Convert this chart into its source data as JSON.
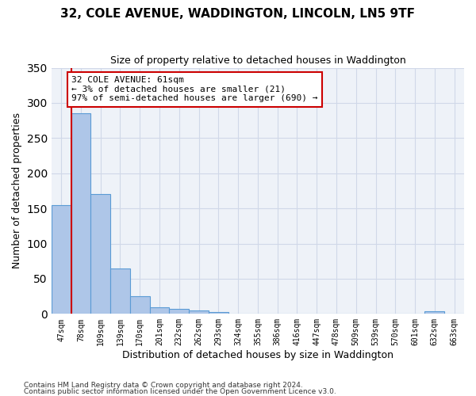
{
  "title": "32, COLE AVENUE, WADDINGTON, LINCOLN, LN5 9TF",
  "subtitle": "Size of property relative to detached houses in Waddington",
  "xlabel": "Distribution of detached houses by size in Waddington",
  "ylabel": "Number of detached properties",
  "bar_values": [
    155,
    285,
    170,
    65,
    25,
    9,
    7,
    5,
    3,
    0,
    0,
    0,
    0,
    0,
    0,
    0,
    0,
    0,
    0,
    4,
    0
  ],
  "bar_labels": [
    "47sqm",
    "78sqm",
    "109sqm",
    "139sqm",
    "170sqm",
    "201sqm",
    "232sqm",
    "262sqm",
    "293sqm",
    "324sqm",
    "355sqm",
    "386sqm",
    "416sqm",
    "447sqm",
    "478sqm",
    "509sqm",
    "539sqm",
    "570sqm",
    "601sqm",
    "632sqm",
    "663sqm"
  ],
  "bar_color": "#aec6e8",
  "bar_edgecolor": "#5b9bd5",
  "grid_color": "#d0d8e8",
  "background_color": "#eef2f8",
  "annotation_text": "32 COLE AVENUE: 61sqm\n← 3% of detached houses are smaller (21)\n97% of semi-detached houses are larger (690) →",
  "annotation_box_color": "#ffffff",
  "annotation_border_color": "#cc0000",
  "red_line_color": "#cc0000",
  "ylim": [
    0,
    350
  ],
  "yticks": [
    0,
    50,
    100,
    150,
    200,
    250,
    300,
    350
  ],
  "footnote1": "Contains HM Land Registry data © Crown copyright and database right 2024.",
  "footnote2": "Contains public sector information licensed under the Open Government Licence v3.0."
}
